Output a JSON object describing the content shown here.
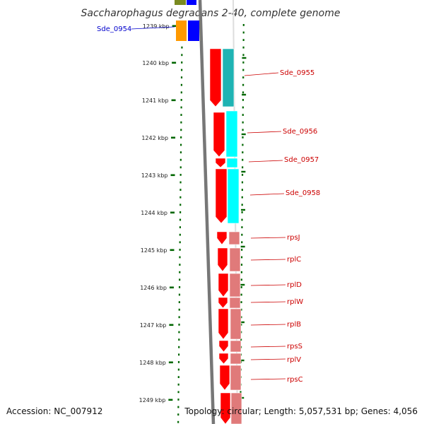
{
  "title": "Saccharophagus degradans 2-40, complete genome",
  "footer": {
    "accession": "Accession: NC_007912",
    "topology": "Topology: circular; Length: 5,057,531 bp; Genes: 4,056"
  },
  "ticks": [
    "1239 kbp",
    "1240 kbp",
    "1241 kbp",
    "1242 kbp",
    "1243 kbp",
    "1244 kbp",
    "1245 kbp",
    "1246 kbp",
    "1247 kbp",
    "1248 kbp",
    "1249 kbp"
  ],
  "colors": {
    "red": "#ff0000",
    "cyan": "#00ffff",
    "teal": "#1fb3b3",
    "pink": "#e07a7a",
    "blue": "#0000ff",
    "orange": "#ff9900",
    "olive": "#7a8a20",
    "label_red": "#cc0000",
    "label_blue": "#0000cc",
    "tick_green": "#006600",
    "backbone": "#777777"
  },
  "gene_labels": [
    {
      "text": "Sde_0954",
      "color": "#0000cc"
    },
    {
      "text": "Sde_0955",
      "color": "#cc0000"
    },
    {
      "text": "Sde_0956",
      "color": "#cc0000"
    },
    {
      "text": "Sde_0957",
      "color": "#cc0000"
    },
    {
      "text": "Sde_0958",
      "color": "#cc0000"
    },
    {
      "text": "rpsJ",
      "color": "#cc0000"
    },
    {
      "text": "rplC",
      "color": "#cc0000"
    },
    {
      "text": "rplD",
      "color": "#cc0000"
    },
    {
      "text": "rplW",
      "color": "#cc0000"
    },
    {
      "text": "rplB",
      "color": "#cc0000"
    },
    {
      "text": "rpsS",
      "color": "#cc0000"
    },
    {
      "text": "rplV",
      "color": "#cc0000"
    },
    {
      "text": "rpsC",
      "color": "#cc0000"
    }
  ]
}
